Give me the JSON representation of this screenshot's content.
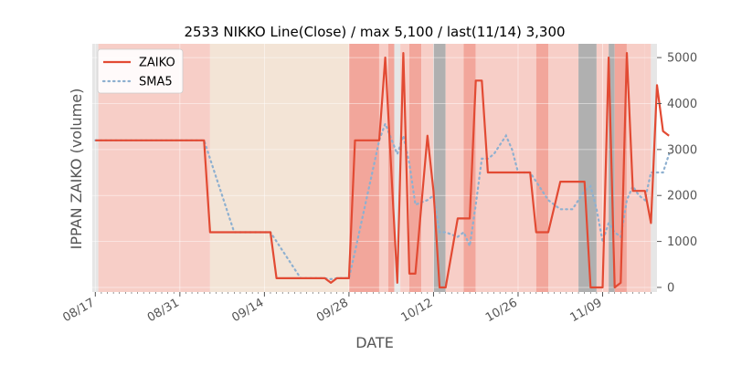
{
  "chart_data": {
    "type": "line",
    "title": "2533 NIKKO Line(Close) / max 5,100 / last(11/14) 3,300",
    "xlabel": "DATE",
    "ylabel": "IPPAN ZAIKO (volume)",
    "ylim": [
      -100,
      5300
    ],
    "y_axis_side": "right",
    "y_ticks": [
      0,
      1000,
      2000,
      3000,
      4000,
      5000
    ],
    "x_ticks": [
      "08/17",
      "08/31",
      "09/14",
      "09/28",
      "10/12",
      "10/26",
      "11/09"
    ],
    "x_tick_days": [
      0,
      14,
      28,
      42,
      56,
      70,
      84
    ],
    "xlim": [
      -0.5,
      93
    ],
    "legend_position": "top-left",
    "grid": true,
    "background_bands": "daily shading (red / orange / beige / grey tints)",
    "colors": {
      "zaiko": "#e24a33",
      "sma5": "#8eb0d0",
      "band_red": "#f2a69b",
      "band_red_light": "#f7cec7",
      "band_beige": "#f3e4d6",
      "band_grey": "#b0b0b0",
      "band_edge": "#e6e6e6"
    },
    "series": [
      {
        "name": "ZAIKO",
        "style": "solid",
        "points": [
          [
            0,
            3200
          ],
          [
            1,
            3200
          ],
          [
            2,
            3200
          ],
          [
            3,
            3200
          ],
          [
            4,
            3200
          ],
          [
            5,
            3200
          ],
          [
            6,
            3200
          ],
          [
            7,
            3200
          ],
          [
            8,
            3200
          ],
          [
            9,
            3200
          ],
          [
            10,
            3200
          ],
          [
            11,
            3200
          ],
          [
            12,
            3200
          ],
          [
            13,
            3200
          ],
          [
            14,
            3200
          ],
          [
            15,
            3200
          ],
          [
            16,
            3200
          ],
          [
            17,
            3200
          ],
          [
            18,
            3200
          ],
          [
            19,
            1200
          ],
          [
            20,
            1200
          ],
          [
            21,
            1200
          ],
          [
            22,
            1200
          ],
          [
            23,
            1200
          ],
          [
            24,
            1200
          ],
          [
            25,
            1200
          ],
          [
            26,
            1200
          ],
          [
            27,
            1200
          ],
          [
            28,
            1200
          ],
          [
            29,
            1200
          ],
          [
            30,
            200
          ],
          [
            31,
            200
          ],
          [
            32,
            200
          ],
          [
            33,
            200
          ],
          [
            34,
            200
          ],
          [
            35,
            200
          ],
          [
            36,
            200
          ],
          [
            37,
            200
          ],
          [
            38,
            200
          ],
          [
            39,
            100
          ],
          [
            40,
            200
          ],
          [
            41,
            200
          ],
          [
            42,
            200
          ],
          [
            43,
            3200
          ],
          [
            44,
            3200
          ],
          [
            45,
            3200
          ],
          [
            46,
            3200
          ],
          [
            47,
            3200
          ],
          [
            48,
            5000
          ],
          [
            50,
            100
          ],
          [
            51,
            5100
          ],
          [
            52,
            300
          ],
          [
            53,
            300
          ],
          [
            55,
            3300
          ],
          [
            56,
            2100
          ],
          [
            57,
            0
          ],
          [
            58,
            0
          ],
          [
            60,
            1500
          ],
          [
            61,
            1500
          ],
          [
            62,
            1500
          ],
          [
            63,
            4500
          ],
          [
            64,
            4500
          ],
          [
            65,
            2500
          ],
          [
            66,
            2500
          ],
          [
            67,
            2500
          ],
          [
            68,
            2500
          ],
          [
            69,
            2500
          ],
          [
            70,
            2500
          ],
          [
            71,
            2500
          ],
          [
            72,
            2500
          ],
          [
            73,
            1200
          ],
          [
            74,
            1200
          ],
          [
            75,
            1200
          ],
          [
            77,
            2300
          ],
          [
            78,
            2300
          ],
          [
            79,
            2300
          ],
          [
            80,
            2300
          ],
          [
            81,
            2300
          ],
          [
            82,
            0
          ],
          [
            83,
            0
          ],
          [
            84,
            0
          ],
          [
            85,
            5000
          ],
          [
            86,
            0
          ],
          [
            87,
            100
          ],
          [
            88,
            5100
          ],
          [
            89,
            2100
          ],
          [
            90,
            2100
          ],
          [
            91,
            2100
          ],
          [
            92,
            1400
          ],
          [
            93,
            4400
          ],
          [
            94,
            3400
          ],
          [
            95,
            3300
          ]
        ]
      },
      {
        "name": "SMA5",
        "style": "dotted",
        "points": [
          [
            0,
            3200
          ],
          [
            1,
            3200
          ],
          [
            2,
            3200
          ],
          [
            3,
            3200
          ],
          [
            4,
            3200
          ],
          [
            5,
            3200
          ],
          [
            6,
            3200
          ],
          [
            7,
            3200
          ],
          [
            8,
            3200
          ],
          [
            9,
            3200
          ],
          [
            10,
            3200
          ],
          [
            11,
            3200
          ],
          [
            12,
            3200
          ],
          [
            13,
            3200
          ],
          [
            14,
            3200
          ],
          [
            15,
            3200
          ],
          [
            16,
            3200
          ],
          [
            17,
            3200
          ],
          [
            18,
            3200
          ],
          [
            19,
            2800
          ],
          [
            20,
            2400
          ],
          [
            21,
            2000
          ],
          [
            22,
            1600
          ],
          [
            23,
            1200
          ],
          [
            24,
            1200
          ],
          [
            25,
            1200
          ],
          [
            26,
            1200
          ],
          [
            27,
            1200
          ],
          [
            28,
            1200
          ],
          [
            29,
            1200
          ],
          [
            30,
            1000
          ],
          [
            31,
            800
          ],
          [
            32,
            600
          ],
          [
            33,
            400
          ],
          [
            34,
            200
          ],
          [
            35,
            200
          ],
          [
            36,
            200
          ],
          [
            37,
            200
          ],
          [
            38,
            200
          ],
          [
            39,
            180
          ],
          [
            40,
            200
          ],
          [
            41,
            200
          ],
          [
            42,
            200
          ],
          [
            43,
            780
          ],
          [
            44,
            1380
          ],
          [
            45,
            1980
          ],
          [
            46,
            2580
          ],
          [
            47,
            3200
          ],
          [
            48,
            3560
          ],
          [
            50,
            2900
          ],
          [
            51,
            3300
          ],
          [
            52,
            2700
          ],
          [
            53,
            1800
          ],
          [
            55,
            1900
          ],
          [
            56,
            2000
          ],
          [
            57,
            1200
          ],
          [
            58,
            1200
          ],
          [
            60,
            1100
          ],
          [
            61,
            1200
          ],
          [
            62,
            900
          ],
          [
            63,
            1800
          ],
          [
            64,
            2800
          ],
          [
            65,
            2800
          ],
          [
            66,
            2900
          ],
          [
            67,
            3100
          ],
          [
            68,
            3300
          ],
          [
            69,
            3000
          ],
          [
            70,
            2500
          ],
          [
            71,
            2500
          ],
          [
            72,
            2500
          ],
          [
            73,
            2300
          ],
          [
            74,
            2100
          ],
          [
            75,
            1900
          ],
          [
            77,
            1700
          ],
          [
            78,
            1700
          ],
          [
            79,
            1700
          ],
          [
            80,
            1900
          ],
          [
            81,
            2100
          ],
          [
            82,
            2200
          ],
          [
            83,
            1700
          ],
          [
            84,
            1000
          ],
          [
            85,
            1400
          ],
          [
            86,
            1200
          ],
          [
            87,
            1100
          ],
          [
            88,
            1900
          ],
          [
            89,
            2200
          ],
          [
            90,
            2000
          ],
          [
            91,
            1900
          ],
          [
            92,
            2500
          ],
          [
            93,
            2500
          ],
          [
            94,
            2500
          ],
          [
            95,
            2900
          ]
        ]
      }
    ]
  }
}
